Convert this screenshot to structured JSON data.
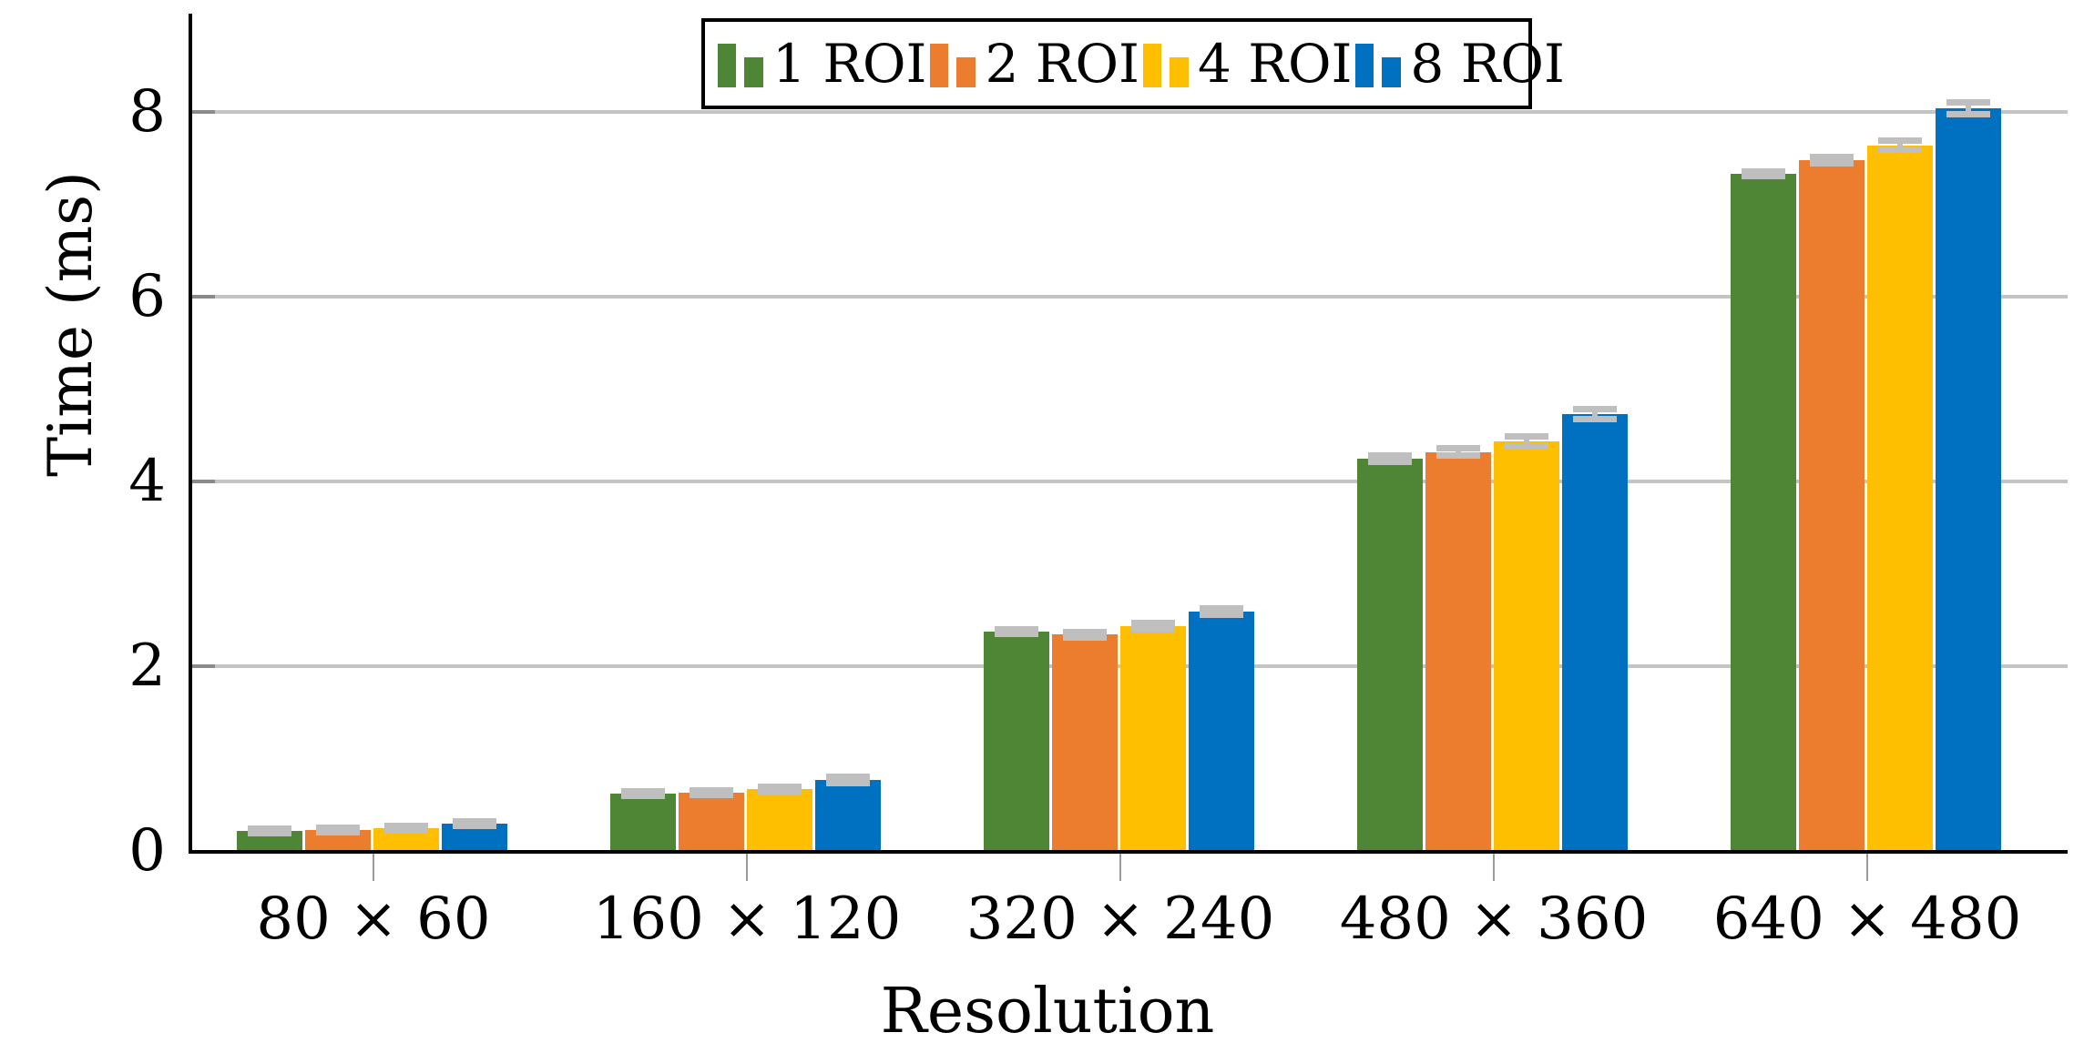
{
  "chart_data": {
    "type": "bar",
    "title": "",
    "xlabel": "Resolution",
    "ylabel": "Time (ms)",
    "categories": [
      "80 × 60",
      "160 × 120",
      "320 × 240",
      "480 × 360",
      "640 × 480"
    ],
    "series": [
      {
        "name": "1 ROI",
        "color": "#4e8636",
        "values": [
          0.22,
          0.62,
          2.37,
          4.25,
          7.33
        ],
        "errors": [
          0.02,
          0.02,
          0.02,
          0.03,
          0.02
        ]
      },
      {
        "name": "2 ROI",
        "color": "#ec7d2f",
        "values": [
          0.23,
          0.63,
          2.34,
          4.32,
          7.48
        ],
        "errors": [
          0.02,
          0.02,
          0.02,
          0.03,
          0.03
        ]
      },
      {
        "name": "4 ROI",
        "color": "#febf00",
        "values": [
          0.25,
          0.67,
          2.43,
          4.43,
          7.64
        ],
        "errors": [
          0.02,
          0.02,
          0.03,
          0.05,
          0.04
        ]
      },
      {
        "name": "8 ROI",
        "color": "#0071c1",
        "values": [
          0.3,
          0.77,
          2.59,
          4.73,
          8.04
        ],
        "errors": [
          0.02,
          0.03,
          0.03,
          0.05,
          0.06
        ]
      }
    ],
    "ylim": [
      0,
      9.1
    ],
    "yticks": [
      0,
      2,
      4,
      6,
      8
    ],
    "ytick_labels": [
      "0",
      "2",
      "4",
      "6",
      "8"
    ],
    "grid": "horizontal",
    "grid_color": "#c4c4c4",
    "error_bar_color": "#bfbfbf",
    "legend_position": "top-center",
    "legend_labels": [
      "1 ROI",
      "2 ROI",
      "4 ROI",
      "8 ROI"
    ]
  }
}
